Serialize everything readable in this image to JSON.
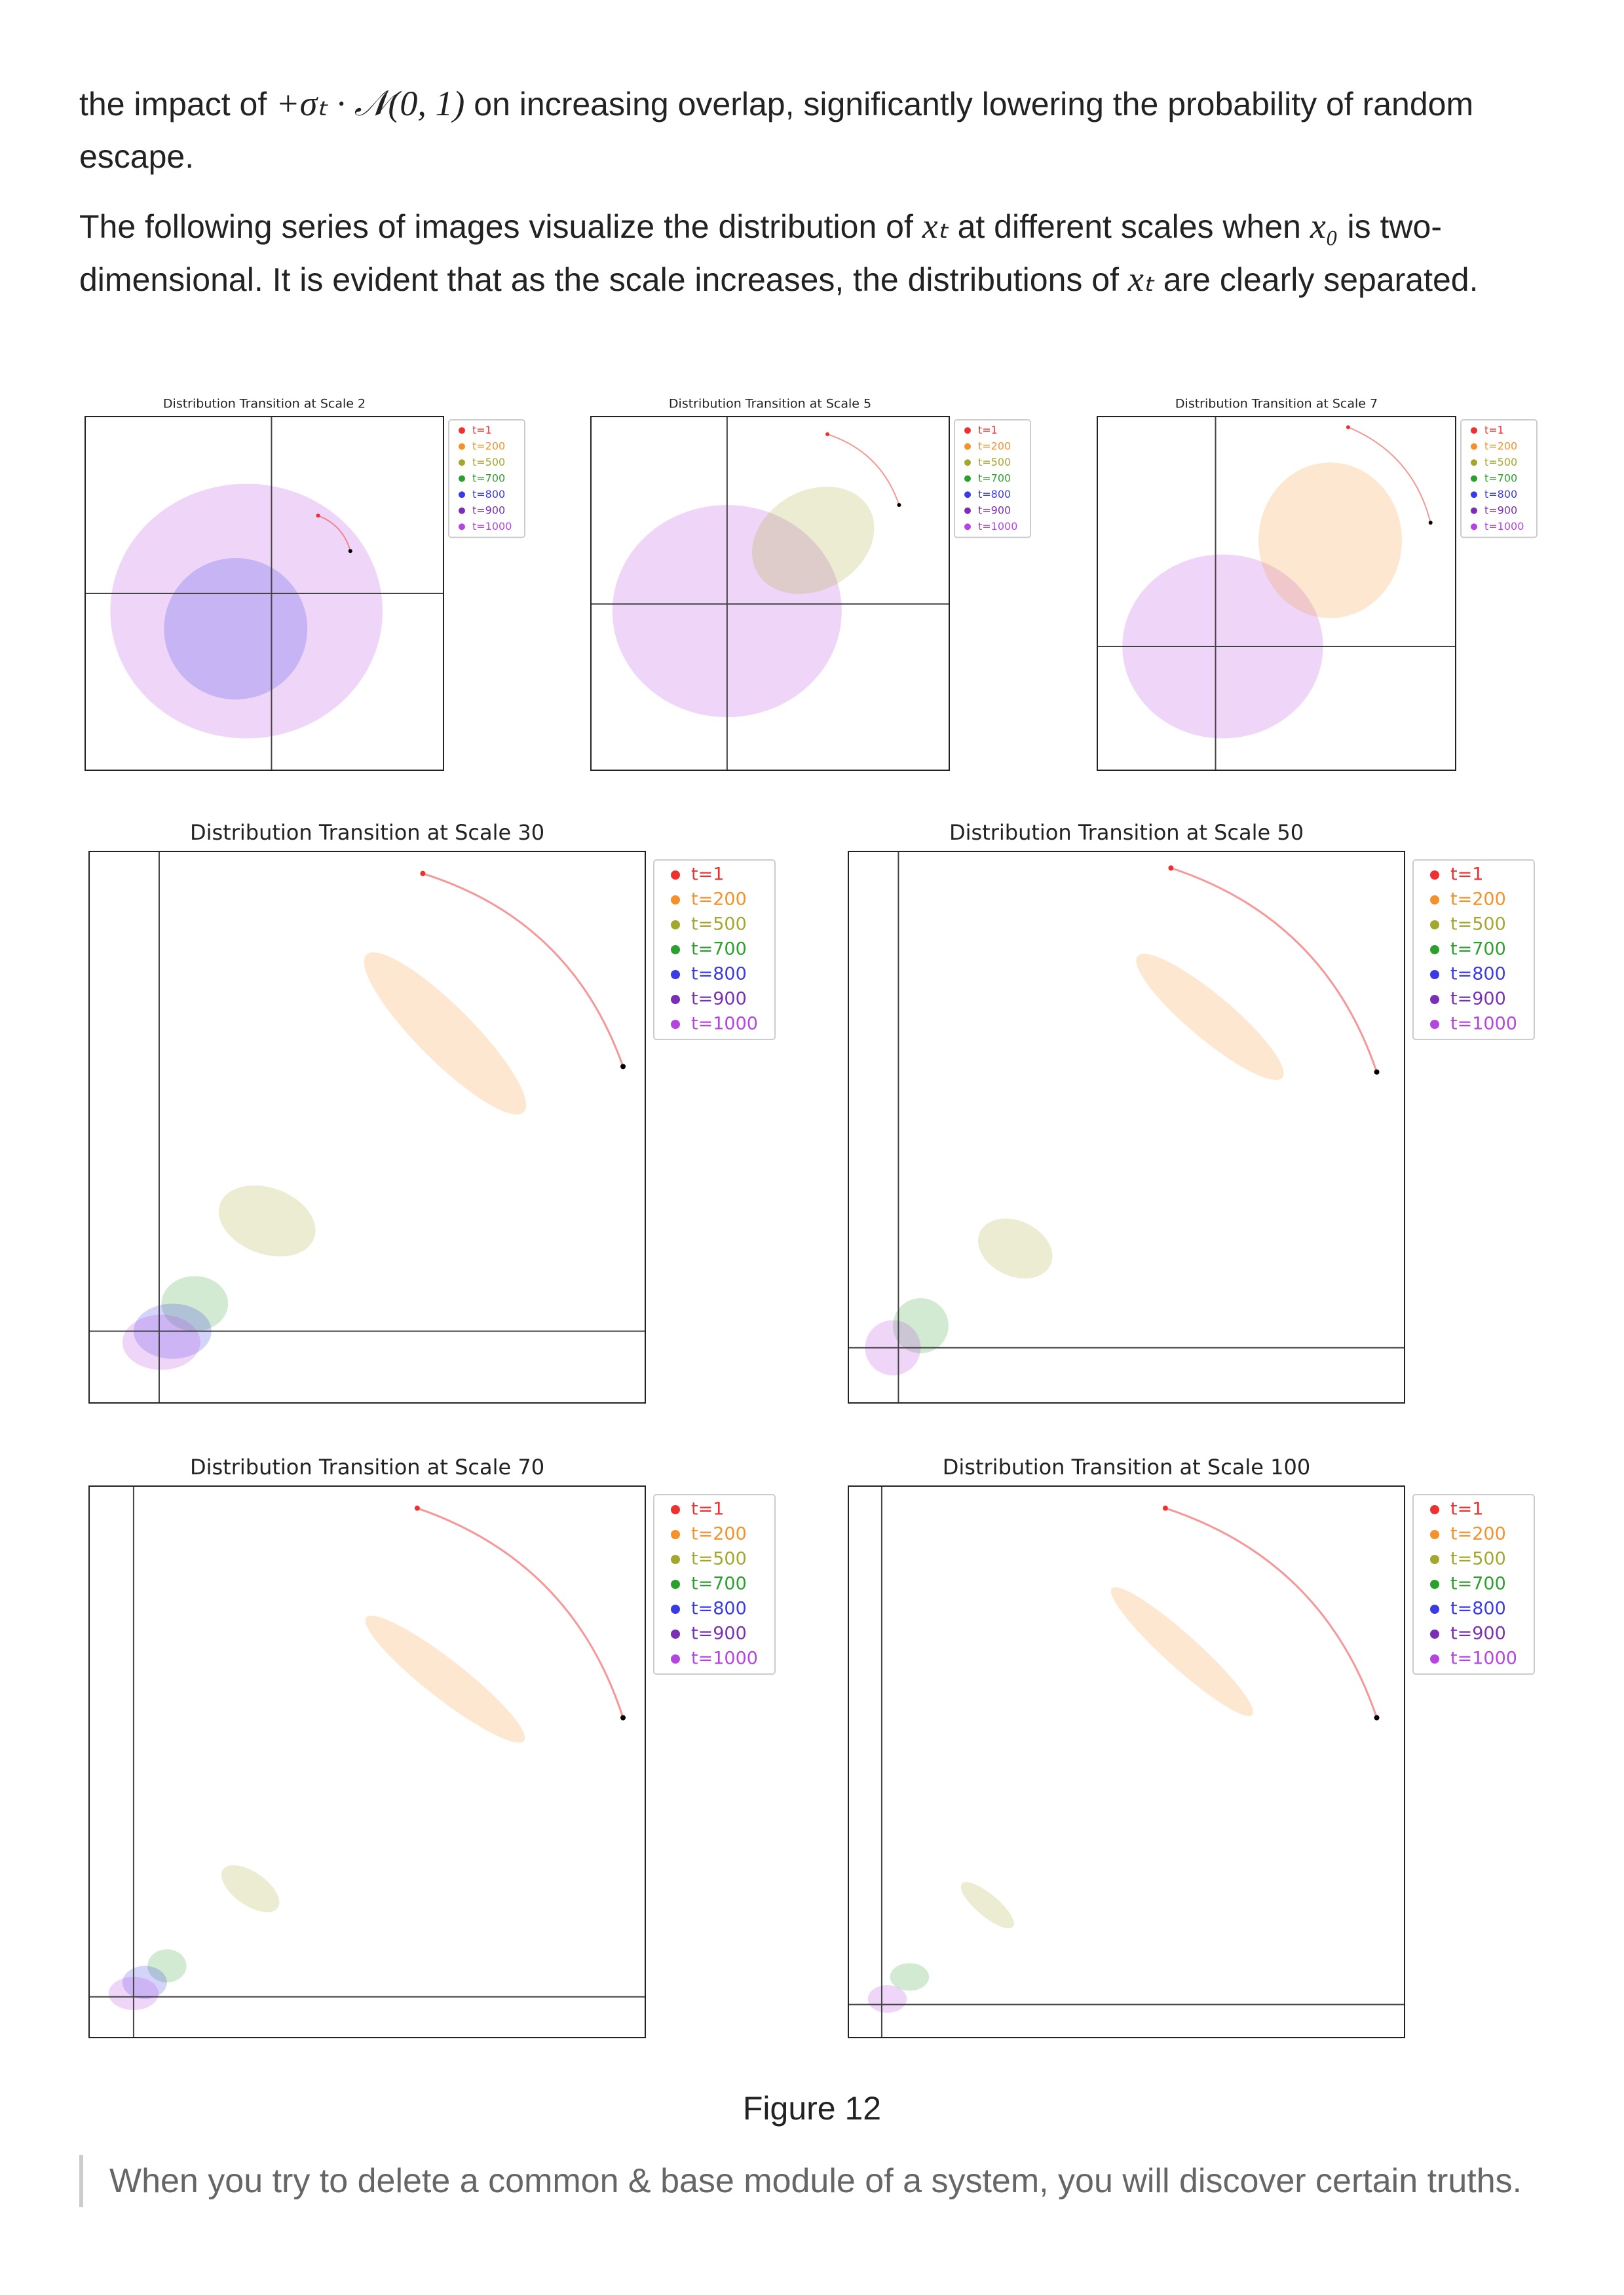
{
  "paragraphs": [
    [
      "the impact of",
      "+σₜ · 𝒩(0, 1)",
      "on increasing overlap, significantly lowering the probability of random escape."
    ],
    [
      "The following series of images visualize the distribution of",
      "xₜ",
      "at different scales when",
      "x₀",
      "is two-dimensional. It is evident that as the scale increases, the distributions of",
      "xₜ",
      "are clearly separated."
    ]
  ],
  "legend": [
    {
      "label": "t=1",
      "color": "#f03030"
    },
    {
      "label": "t=200",
      "color": "#f5902a"
    },
    {
      "label": "t=500",
      "color": "#a3a82c"
    },
    {
      "label": "t=700",
      "color": "#2ca02c"
    },
    {
      "label": "t=800",
      "color": "#3a3ae8"
    },
    {
      "label": "t=900",
      "color": "#7a2fb5"
    },
    {
      "label": "t=1000",
      "color": "#b445e0"
    }
  ],
  "figures": [
    {
      "title": "Distribution Transition at Scale 2"
    },
    {
      "title": "Distribution Transition at Scale 5"
    },
    {
      "title": "Distribution Transition at Scale 7"
    },
    {
      "title": "Distribution Transition at Scale 30"
    },
    {
      "title": "Distribution Transition at Scale 50"
    },
    {
      "title": "Distribution Transition at Scale 70"
    },
    {
      "title": "Distribution Transition at Scale 100"
    }
  ],
  "caption": "Figure 12",
  "quote": "When you try to delete a common & base module of a system, you will discover certain truths."
}
